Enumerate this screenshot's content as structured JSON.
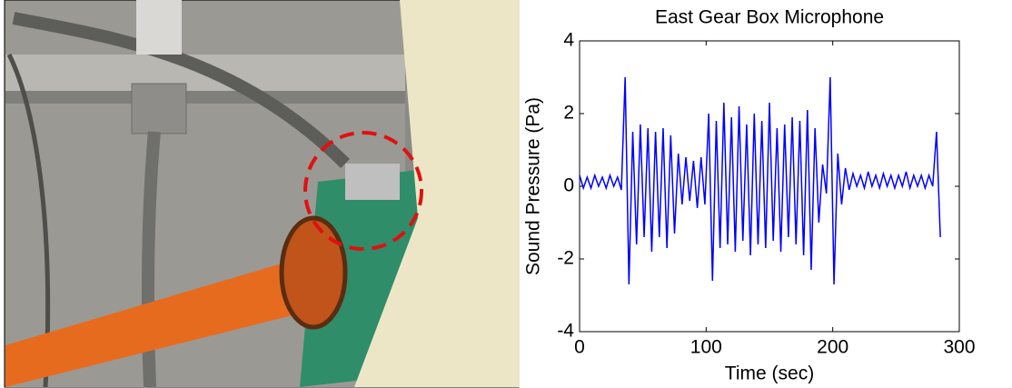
{
  "chart_data": {
    "type": "line",
    "title": "East Gear Box Microphone",
    "x_label": "Time (sec)",
    "y_label": "Sound Pressure (Pa)",
    "x": [
      0,
      3,
      6,
      9,
      12,
      15,
      18,
      21,
      24,
      27,
      30,
      33,
      36,
      39,
      42,
      45,
      48,
      51,
      54,
      57,
      60,
      63,
      66,
      69,
      72,
      75,
      78,
      81,
      84,
      87,
      90,
      93,
      96,
      99,
      102,
      105,
      108,
      111,
      114,
      117,
      120,
      123,
      126,
      129,
      132,
      135,
      138,
      141,
      144,
      147,
      150,
      153,
      156,
      159,
      162,
      165,
      168,
      171,
      174,
      177,
      180,
      183,
      186,
      189,
      192,
      195,
      198,
      201,
      204,
      207,
      210,
      213,
      216,
      219,
      222,
      225,
      228,
      231,
      234,
      237,
      240,
      243,
      246,
      249,
      252,
      255,
      258,
      261,
      264,
      267,
      270,
      273,
      276,
      279,
      282,
      285
    ],
    "series": [
      {
        "color": "#0000ff",
        "values": [
          0.3,
          -0.05,
          0.25,
          -0.05,
          0.3,
          0,
          0.25,
          -0.05,
          0.3,
          0,
          0.25,
          -0.1,
          3.0,
          -2.7,
          1.5,
          -1.6,
          1.7,
          -1.4,
          1.6,
          -1.8,
          1.5,
          -1.4,
          1.6,
          -1.7,
          1.4,
          -1.3,
          0.9,
          -0.5,
          0.8,
          -0.4,
          0.7,
          -0.6,
          0.8,
          -0.5,
          2.0,
          -2.6,
          1.8,
          -1.7,
          2.3,
          -1.6,
          1.9,
          -1.8,
          2.2,
          -1.5,
          1.7,
          -1.9,
          2.0,
          -1.6,
          1.8,
          -1.7,
          2.3,
          -1.5,
          1.6,
          -1.8,
          1.7,
          -1.4,
          1.9,
          -1.6,
          1.8,
          -1.9,
          2.1,
          -2.3,
          1.6,
          -1.0,
          0.6,
          -0.2,
          3.0,
          -2.7,
          0.9,
          -0.5,
          0.5,
          -0.1,
          0.35,
          0,
          0.3,
          -0.05,
          0.4,
          0,
          0.3,
          -0.05,
          0.35,
          0,
          0.3,
          -0.05,
          0.3,
          0,
          0.4,
          -0.05,
          0.3,
          0,
          0.3,
          -0.05,
          0.3,
          0,
          1.5,
          -1.4
        ]
      }
    ],
    "xlim": [
      0,
      300
    ],
    "xticks": [
      0,
      100,
      200,
      300
    ],
    "ylim": [
      -4,
      4
    ],
    "yticks": [
      -4,
      -2,
      0,
      2,
      4
    ]
  }
}
